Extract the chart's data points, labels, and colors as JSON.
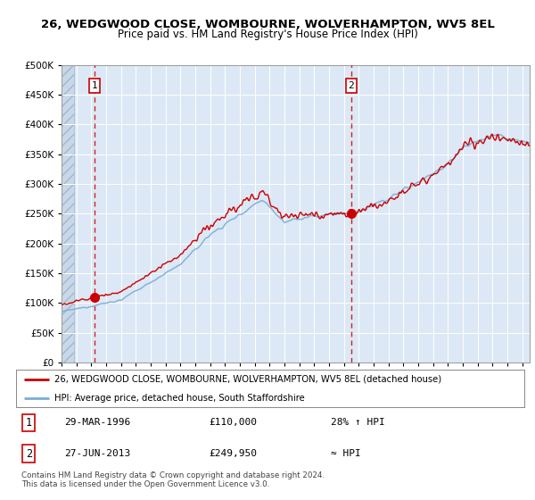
{
  "title": "26, WEDGWOOD CLOSE, WOMBOURNE, WOLVERHAMPTON, WV5 8EL",
  "subtitle": "Price paid vs. HM Land Registry's House Price Index (HPI)",
  "legend_line1": "26, WEDGWOOD CLOSE, WOMBOURNE, WOLVERHAMPTON, WV5 8EL (detached house)",
  "legend_line2": "HPI: Average price, detached house, South Staffordshire",
  "table_row1_date": "29-MAR-1996",
  "table_row1_price": "£110,000",
  "table_row1_hpi": "28% ↑ HPI",
  "table_row2_date": "27-JUN-2013",
  "table_row2_price": "£249,950",
  "table_row2_hpi": "≈ HPI",
  "footnote": "Contains HM Land Registry data © Crown copyright and database right 2024.\nThis data is licensed under the Open Government Licence v3.0.",
  "sale1_year": 1996.24,
  "sale1_price": 110000,
  "sale2_year": 2013.49,
  "sale2_price": 249950,
  "plot_bg": "#dce8f5",
  "red_line_color": "#cc0000",
  "blue_line_color": "#7aadd4",
  "ylim": [
    0,
    500000
  ],
  "xlim_left": 1994.0,
  "xlim_right": 2025.5
}
